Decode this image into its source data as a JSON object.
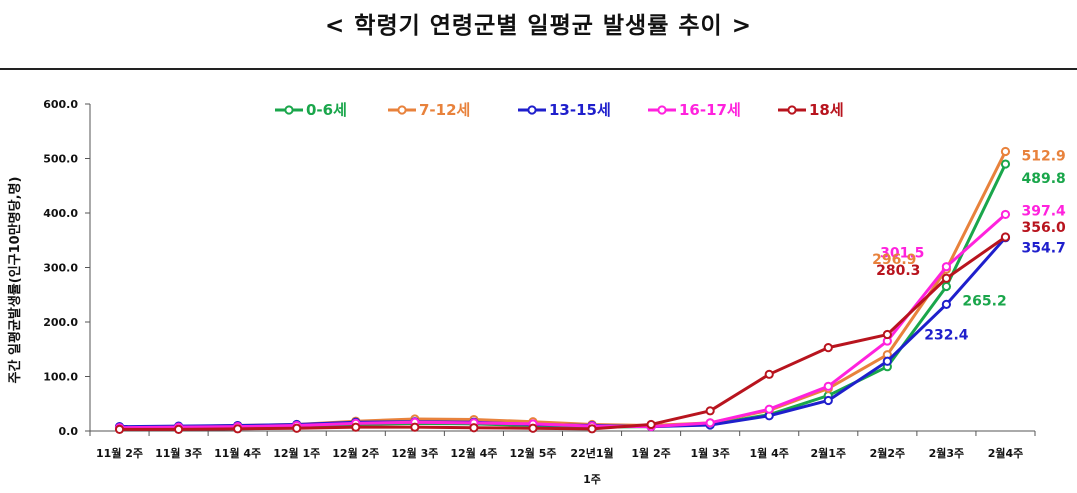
{
  "page_title": "< 학령기 연령군별 일평균 발생률 추이 >",
  "chart_data": {
    "type": "line",
    "ylabel": "주간 일평균발생률(인구10만명당,명)",
    "ylim": [
      0,
      600
    ],
    "yticks": [
      "0.0",
      "100.0",
      "200.0",
      "300.0",
      "400.0",
      "500.0",
      "600.0"
    ],
    "categories": [
      "11월 2주",
      "11월 3주",
      "11월 4주",
      "12월 1주",
      "12월 2주",
      "12월 3주",
      "12월 4주",
      "12월 5주",
      "22년1월 1주",
      "1월 2주",
      "1월 3주",
      "1월 4주",
      "2월1주",
      "2월2주",
      "2월3주",
      "2월4주"
    ],
    "grid": false,
    "legend_position": "top",
    "series": [
      {
        "name": "0-6세",
        "color": "#1aa64b",
        "values": [
          5,
          5,
          6,
          8,
          12,
          14,
          13,
          10,
          7,
          8,
          12,
          30,
          65,
          118,
          265.2,
          489.8
        ]
      },
      {
        "name": "7-12세",
        "color": "#e8823c",
        "values": [
          7,
          8,
          10,
          12,
          18,
          22,
          21,
          17,
          12,
          10,
          15,
          38,
          78,
          140,
          296.9,
          512.9
        ]
      },
      {
        "name": "13-15세",
        "color": "#1f1fcc",
        "values": [
          8,
          9,
          10,
          12,
          16,
          17,
          16,
          12,
          10,
          8,
          11,
          28,
          56,
          128,
          232.4,
          354.7
        ]
      },
      {
        "name": "16-17세",
        "color": "#ff22dd",
        "values": [
          6,
          7,
          8,
          10,
          14,
          16,
          15,
          13,
          9,
          8,
          15,
          40,
          82,
          165,
          301.5,
          397.4
        ]
      },
      {
        "name": "18세",
        "color": "#b8141e",
        "values": [
          3,
          3,
          4,
          5,
          7,
          7,
          6,
          5,
          4,
          12,
          37,
          104,
          153,
          177,
          280.3,
          356.0
        ]
      }
    ],
    "annotations": [
      {
        "series": "7-12세",
        "label": "512.9"
      },
      {
        "series": "0-6세",
        "label": "489.8"
      },
      {
        "series": "16-17세",
        "label": "397.4"
      },
      {
        "series": "18세",
        "label": "356.0"
      },
      {
        "series": "13-15세",
        "label": "354.7"
      },
      {
        "series": "16-17세",
        "label": "301.5"
      },
      {
        "series": "7-12세",
        "label": "296.9"
      },
      {
        "series": "18세",
        "label": "280.3"
      },
      {
        "series": "0-6세",
        "label": "265.2"
      },
      {
        "series": "13-15세",
        "label": "232.4"
      }
    ]
  }
}
